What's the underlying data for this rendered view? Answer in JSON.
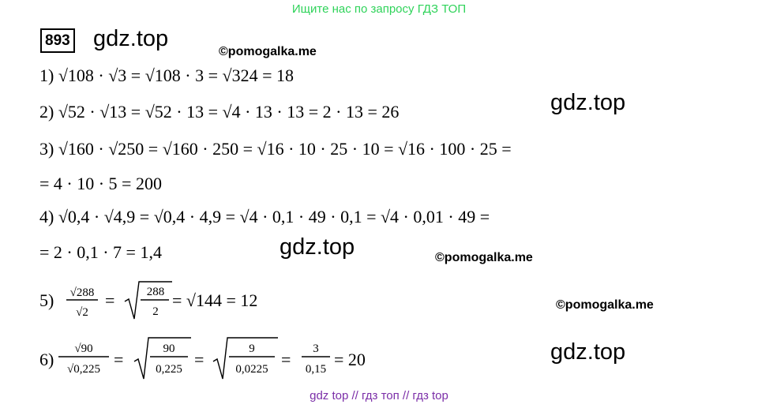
{
  "header": {
    "banner": "Ищите нас по запросу ГДЗ ТОП",
    "problem_number": "893",
    "site": "gdz.top"
  },
  "watermarks": {
    "copyright_1": "©pomogalka.me",
    "copyright_2": "©pomogalka.me",
    "copyright_3": "©pomogalka.me",
    "site_1": "gdz.top",
    "site_2": "gdz.top",
    "site_3": "gdz.top"
  },
  "solution": {
    "line1": "1) √108 · √3 = √108 · 3 = √324 = 18",
    "line2": "2) √52 · √13 = √52 · 13 = √4 · 13 · 13 = 2 · 13 = 26",
    "line3a": "3) √160 · √250 = √160 · 250 = √16 · 10 · 25 · 10 = √16 · 100 · 25 =",
    "line3b": "= 4 · 10 · 5 = 200",
    "line4a": "4) √0,4 · √4,9 = √0,4 · 4,9 = √4 · 0,1 · 49 · 0,1 = √4 · 0,01 · 49 =",
    "line4b": "= 2 · 0,1 · 7 = 1,4",
    "line5": {
      "label": "5)",
      "num1": "√288",
      "den1": "√2",
      "num2": "288",
      "den2": "2",
      "tail": "= √144 = 12"
    },
    "line6": {
      "label": "6)",
      "num1": "√90",
      "den1": "√0,225",
      "num2": "90",
      "den2": "0,225",
      "num3": "9",
      "den3": "0,0225",
      "num4": "3",
      "den4": "0,15",
      "tail": "= 20"
    }
  },
  "footer": {
    "banner": "gdz top  //  гдз топ  //  гдз top"
  }
}
